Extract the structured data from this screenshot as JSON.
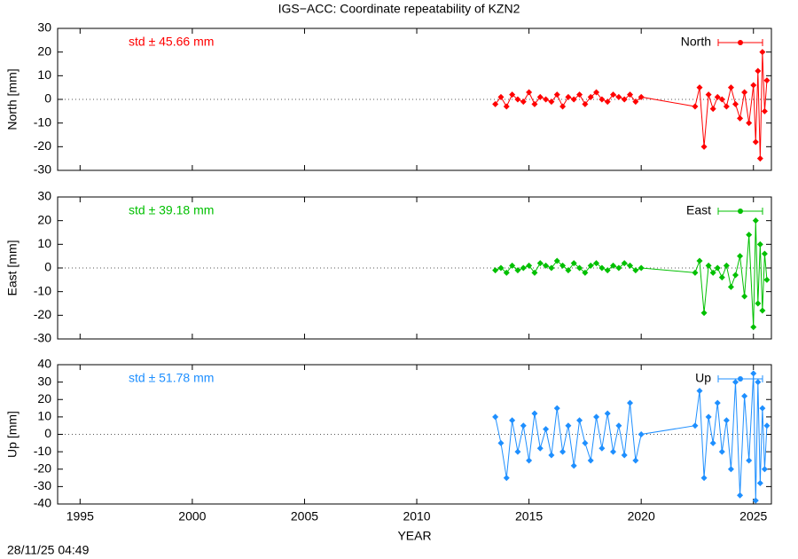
{
  "title": "IGS−ACC: Coordinate repeatability of KZN2",
  "footer": "28/11/25 04:49",
  "chart_data": [
    {
      "type": "line",
      "ylabel": "North [mm]",
      "annotation": "std ± 45.66 mm",
      "legend": "upper right",
      "marker": "diamond",
      "zero_line": true,
      "xlim": [
        1994,
        2025.8
      ],
      "ylim": [
        -30,
        30
      ],
      "yticks": [
        -30,
        -20,
        -10,
        0,
        10,
        20,
        30
      ],
      "x": [
        2013.5,
        2013.75,
        2014.0,
        2014.25,
        2014.5,
        2014.75,
        2015.0,
        2015.25,
        2015.5,
        2015.75,
        2016.0,
        2016.25,
        2016.5,
        2016.75,
        2017.0,
        2017.25,
        2017.5,
        2017.75,
        2018.0,
        2018.25,
        2018.5,
        2018.75,
        2019.0,
        2019.25,
        2019.5,
        2019.75,
        2020.0,
        2022.4,
        2022.6,
        2022.8,
        2023.0,
        2023.2,
        2023.4,
        2023.6,
        2023.8,
        2024.0,
        2024.2,
        2024.4,
        2024.6,
        2024.8,
        2025.0,
        2025.1,
        2025.2,
        2025.3,
        2025.4,
        2025.5,
        2025.6
      ],
      "series": [
        {
          "name": "North",
          "color": "#ff0000",
          "values": [
            -2,
            1,
            -3,
            2,
            0,
            -1,
            3,
            -2,
            1,
            0,
            -1,
            2,
            -3,
            1,
            0,
            2,
            -2,
            1,
            3,
            0,
            -1,
            2,
            1,
            0,
            2,
            -1,
            1,
            -3,
            5,
            -20,
            2,
            -4,
            1,
            0,
            -3,
            5,
            -2,
            -8,
            3,
            -10,
            6,
            -18,
            12,
            -25,
            20,
            -5,
            8
          ]
        }
      ]
    },
    {
      "type": "line",
      "ylabel": "East [mm]",
      "annotation": "std ± 39.18 mm",
      "legend": "upper right",
      "marker": "diamond",
      "zero_line": true,
      "xlim": [
        1994,
        2025.8
      ],
      "ylim": [
        -30,
        30
      ],
      "yticks": [
        -30,
        -20,
        -10,
        0,
        10,
        20,
        30
      ],
      "x": [
        2013.5,
        2013.75,
        2014.0,
        2014.25,
        2014.5,
        2014.75,
        2015.0,
        2015.25,
        2015.5,
        2015.75,
        2016.0,
        2016.25,
        2016.5,
        2016.75,
        2017.0,
        2017.25,
        2017.5,
        2017.75,
        2018.0,
        2018.25,
        2018.5,
        2018.75,
        2019.0,
        2019.25,
        2019.5,
        2019.75,
        2020.0,
        2022.4,
        2022.6,
        2022.8,
        2023.0,
        2023.2,
        2023.4,
        2023.6,
        2023.8,
        2024.0,
        2024.2,
        2024.4,
        2024.6,
        2024.8,
        2025.0,
        2025.1,
        2025.2,
        2025.3,
        2025.4,
        2025.5,
        2025.6
      ],
      "series": [
        {
          "name": "East",
          "color": "#00c000",
          "values": [
            -1,
            0,
            -2,
            1,
            -1,
            0,
            1,
            -2,
            2,
            1,
            0,
            3,
            1,
            -1,
            2,
            0,
            -2,
            1,
            2,
            0,
            -1,
            1,
            0,
            2,
            1,
            -1,
            0,
            -2,
            3,
            -19,
            1,
            -2,
            0,
            -4,
            1,
            -8,
            -3,
            5,
            -12,
            14,
            -25,
            20,
            -15,
            10,
            -18,
            6,
            -5
          ]
        }
      ]
    },
    {
      "type": "line",
      "ylabel": "Up [mm]",
      "annotation": "std ± 51.78 mm",
      "legend": "upper right",
      "marker": "diamond",
      "zero_line": true,
      "xlabel": "YEAR",
      "xlim": [
        1994,
        2025.8
      ],
      "xticks": [
        1995,
        2000,
        2005,
        2010,
        2015,
        2020,
        2025
      ],
      "ylim": [
        -40,
        40
      ],
      "yticks": [
        -40,
        -30,
        -20,
        -10,
        0,
        10,
        20,
        30,
        40
      ],
      "x": [
        2013.5,
        2013.75,
        2014.0,
        2014.25,
        2014.5,
        2014.75,
        2015.0,
        2015.25,
        2015.5,
        2015.75,
        2016.0,
        2016.25,
        2016.5,
        2016.75,
        2017.0,
        2017.25,
        2017.5,
        2017.75,
        2018.0,
        2018.25,
        2018.5,
        2018.75,
        2019.0,
        2019.25,
        2019.5,
        2019.75,
        2020.0,
        2022.4,
        2022.6,
        2022.8,
        2023.0,
        2023.2,
        2023.4,
        2023.6,
        2023.8,
        2024.0,
        2024.2,
        2024.4,
        2024.6,
        2024.8,
        2025.0,
        2025.1,
        2025.2,
        2025.3,
        2025.4,
        2025.5,
        2025.6
      ],
      "series": [
        {
          "name": "Up",
          "color": "#1e8fff",
          "values": [
            10,
            -5,
            -25,
            8,
            -10,
            5,
            -15,
            12,
            -8,
            3,
            -12,
            15,
            -10,
            5,
            -18,
            8,
            -5,
            -15,
            10,
            -8,
            12,
            -10,
            5,
            -12,
            18,
            -15,
            0,
            5,
            25,
            -25,
            10,
            -5,
            18,
            -10,
            8,
            -20,
            30,
            -35,
            22,
            -15,
            35,
            -38,
            30,
            -28,
            15,
            -20,
            5
          ]
        }
      ]
    }
  ]
}
